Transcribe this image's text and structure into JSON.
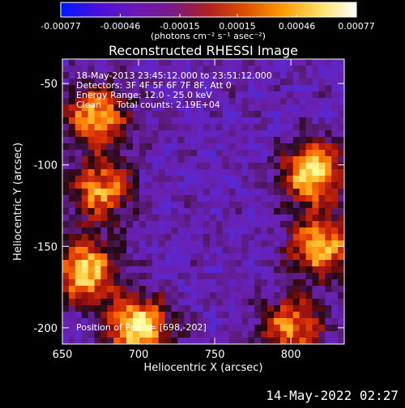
{
  "colorbar": {
    "tick_labels": [
      "-0.00077",
      "-0.00046",
      "-0.00015",
      "0.00015",
      "0.00046",
      "0.00077"
    ],
    "tick_values": [
      -0.00077,
      -0.00046,
      -0.00015,
      0.00015,
      0.00046,
      0.00077
    ],
    "range": [
      -0.00077,
      0.00077
    ],
    "unit_label": "(photons cm⁻² s⁻¹ asec⁻²)",
    "colors": [
      "#0018ff",
      "#4a10d8",
      "#6a18b8",
      "#7a1a88",
      "#b02020",
      "#e05000",
      "#ff9a00",
      "#ffe060",
      "#ffffff"
    ]
  },
  "chart_data": {
    "type": "heatmap",
    "title": "Reconstructed RHESSI Image",
    "xlabel": "Heliocentric X (arcsec)",
    "ylabel": "Heliocentric Y (arcsec)",
    "xlim": [
      650,
      835
    ],
    "ylim": [
      -210,
      -35
    ],
    "xticks": [
      650,
      700,
      750,
      800
    ],
    "yticks": [
      -50,
      -100,
      -150,
      -200
    ],
    "hot_regions": [
      {
        "x": 700,
        "y": -200,
        "level": 1.0
      },
      {
        "x": 665,
        "y": -165,
        "level": 0.9
      },
      {
        "x": 675,
        "y": -115,
        "level": 0.75
      },
      {
        "x": 672,
        "y": -70,
        "level": 0.8
      },
      {
        "x": 815,
        "y": -105,
        "level": 0.95
      },
      {
        "x": 820,
        "y": -150,
        "level": 0.85
      },
      {
        "x": 800,
        "y": -200,
        "level": 0.7
      }
    ],
    "annotations": {
      "time_range": "18-May-2013 23:45:12.000 to 23:51:12.000",
      "detectors": "Detectors: 3F 4F 5F 6F 7F 8F, Att 0",
      "energy": "Energy Range: 12.0 - 25.0 keV",
      "method": "Clean",
      "counts": "Total counts: 2.19E+04",
      "peak": "Position of Peak = [698,-202]"
    }
  },
  "footer": {
    "date": "14-May-2022 02:27"
  }
}
